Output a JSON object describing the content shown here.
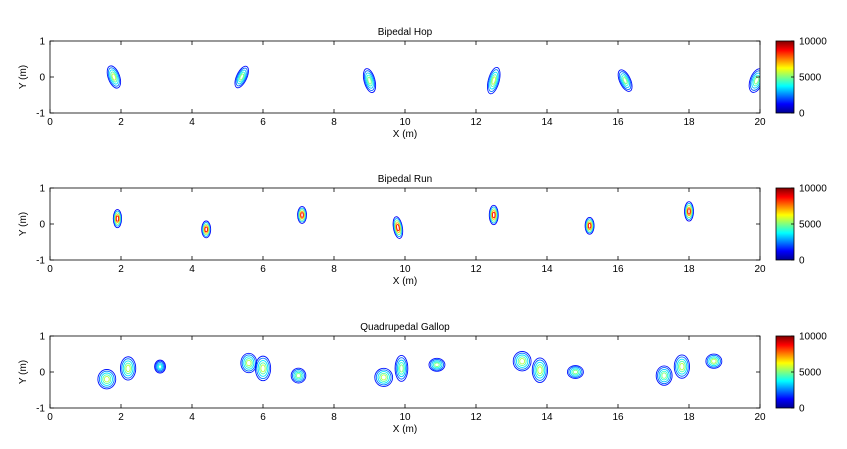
{
  "colorbar_colors": [
    "#00008f",
    "#0000ff",
    "#0080ff",
    "#00ffff",
    "#80ff80",
    "#ffff00",
    "#ff8000",
    "#ff0000",
    "#800000"
  ],
  "chart_data": [
    {
      "type": "contour",
      "title": "Bipedal Hop",
      "xlabel": "X (m)",
      "ylabel": "Y (m)",
      "xlim": [
        0,
        20
      ],
      "ylim": [
        -1,
        1
      ],
      "xticks": [
        0,
        2,
        4,
        6,
        8,
        10,
        12,
        14,
        16,
        18,
        20
      ],
      "yticks": [
        -1,
        0,
        1
      ],
      "colorbar": {
        "min": 0,
        "max": 10000,
        "ticks": [
          0,
          5000,
          10000
        ]
      },
      "blobs": [
        {
          "x": 1.8,
          "y": 0.0,
          "rx": 0.18,
          "ry": 0.36,
          "rot": -20,
          "peak": 4500
        },
        {
          "x": 5.4,
          "y": 0.0,
          "rx": 0.16,
          "ry": 0.36,
          "rot": 25,
          "peak": 4000
        },
        {
          "x": 9.0,
          "y": -0.1,
          "rx": 0.17,
          "ry": 0.38,
          "rot": -15,
          "peak": 4000
        },
        {
          "x": 12.5,
          "y": -0.1,
          "rx": 0.17,
          "ry": 0.42,
          "rot": 15,
          "peak": 4500
        },
        {
          "x": 16.2,
          "y": -0.1,
          "rx": 0.17,
          "ry": 0.36,
          "rot": -25,
          "peak": 4000
        },
        {
          "x": 19.9,
          "y": -0.1,
          "rx": 0.2,
          "ry": 0.38,
          "rot": 20,
          "peak": 4000
        }
      ]
    },
    {
      "type": "contour",
      "title": "Bipedal Run",
      "xlabel": "X (m)",
      "ylabel": "Y (m)",
      "xlim": [
        0,
        20
      ],
      "ylim": [
        -1,
        1
      ],
      "xticks": [
        0,
        2,
        4,
        6,
        8,
        10,
        12,
        14,
        16,
        18,
        20
      ],
      "yticks": [
        -1,
        0,
        1
      ],
      "colorbar": {
        "min": 0,
        "max": 10000,
        "ticks": [
          0,
          5000,
          10000
        ]
      },
      "blobs": [
        {
          "x": 1.9,
          "y": 0.15,
          "rx": 0.13,
          "ry": 0.28,
          "rot": 0,
          "peak": 9500
        },
        {
          "x": 4.4,
          "y": -0.15,
          "rx": 0.14,
          "ry": 0.26,
          "rot": 0,
          "peak": 9500
        },
        {
          "x": 7.1,
          "y": 0.25,
          "rx": 0.14,
          "ry": 0.26,
          "rot": 0,
          "peak": 9500
        },
        {
          "x": 9.8,
          "y": -0.1,
          "rx": 0.14,
          "ry": 0.34,
          "rot": -10,
          "peak": 9500
        },
        {
          "x": 12.5,
          "y": 0.25,
          "rx": 0.14,
          "ry": 0.3,
          "rot": 0,
          "peak": 9500
        },
        {
          "x": 15.2,
          "y": -0.05,
          "rx": 0.14,
          "ry": 0.26,
          "rot": 0,
          "peak": 9500
        },
        {
          "x": 18.0,
          "y": 0.35,
          "rx": 0.14,
          "ry": 0.3,
          "rot": 0,
          "peak": 9500
        }
      ]
    },
    {
      "type": "contour",
      "title": "Quadrupedal Gallop",
      "xlabel": "X (m)",
      "ylabel": "Y (m)",
      "xlim": [
        0,
        20
      ],
      "ylim": [
        -1,
        1
      ],
      "xticks": [
        0,
        2,
        4,
        6,
        8,
        10,
        12,
        14,
        16,
        18,
        20
      ],
      "yticks": [
        -1,
        0,
        1
      ],
      "colorbar": {
        "min": 0,
        "max": 10000,
        "ticks": [
          0,
          5000,
          10000
        ]
      },
      "blobs": [
        {
          "x": 1.6,
          "y": -0.2,
          "rx": 0.28,
          "ry": 0.3,
          "rot": 0,
          "peak": 4500
        },
        {
          "x": 2.2,
          "y": 0.1,
          "rx": 0.24,
          "ry": 0.36,
          "rot": 0,
          "peak": 4500
        },
        {
          "x": 3.1,
          "y": 0.15,
          "rx": 0.17,
          "ry": 0.2,
          "rot": 0,
          "peak": 3000
        },
        {
          "x": 5.6,
          "y": 0.25,
          "rx": 0.25,
          "ry": 0.3,
          "rot": 0,
          "peak": 4500
        },
        {
          "x": 6.0,
          "y": 0.1,
          "rx": 0.24,
          "ry": 0.38,
          "rot": 0,
          "peak": 4500
        },
        {
          "x": 7.0,
          "y": -0.1,
          "rx": 0.23,
          "ry": 0.23,
          "rot": 0,
          "peak": 4000
        },
        {
          "x": 9.4,
          "y": -0.15,
          "rx": 0.28,
          "ry": 0.28,
          "rot": 0,
          "peak": 4500
        },
        {
          "x": 9.9,
          "y": 0.1,
          "rx": 0.2,
          "ry": 0.4,
          "rot": 0,
          "peak": 4000
        },
        {
          "x": 10.9,
          "y": 0.2,
          "rx": 0.25,
          "ry": 0.2,
          "rot": 0,
          "peak": 4000
        },
        {
          "x": 13.3,
          "y": 0.3,
          "rx": 0.28,
          "ry": 0.3,
          "rot": 0,
          "peak": 4500
        },
        {
          "x": 13.8,
          "y": 0.05,
          "rx": 0.24,
          "ry": 0.38,
          "rot": 0,
          "peak": 4500
        },
        {
          "x": 14.8,
          "y": 0.0,
          "rx": 0.25,
          "ry": 0.2,
          "rot": 0,
          "peak": 4000
        },
        {
          "x": 17.3,
          "y": -0.1,
          "rx": 0.25,
          "ry": 0.3,
          "rot": 0,
          "peak": 4000
        },
        {
          "x": 17.8,
          "y": 0.15,
          "rx": 0.24,
          "ry": 0.36,
          "rot": 0,
          "peak": 4500
        },
        {
          "x": 18.7,
          "y": 0.3,
          "rx": 0.25,
          "ry": 0.22,
          "rot": 0,
          "peak": 4500
        }
      ]
    }
  ]
}
